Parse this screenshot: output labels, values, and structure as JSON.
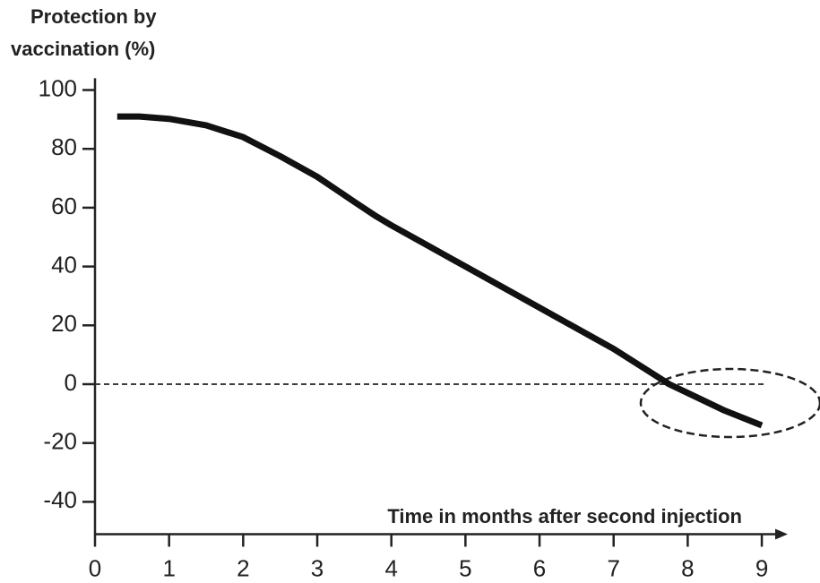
{
  "chart_data": {
    "type": "line",
    "ylabel": [
      "Protection by",
      "vaccination (%)"
    ],
    "xlabel": "Time in months after second injection",
    "x": [
      0.3,
      0.6,
      1,
      1.5,
      2,
      2.5,
      3,
      3.5,
      3.8,
      4,
      4.5,
      5,
      5.5,
      6,
      6.5,
      7,
      7.5,
      7.75,
      8,
      8.5,
      9
    ],
    "series": [
      {
        "name": "Protection",
        "color": "#111111",
        "values": [
          91,
          91,
          90.2,
          88,
          84,
          77.5,
          70.5,
          62,
          57,
          54,
          47,
          40,
          33,
          26,
          19,
          12,
          4,
          0,
          -3,
          -9,
          -14
        ]
      }
    ],
    "xlim": [
      0,
      9.35
    ],
    "xticks": [
      0,
      1,
      2,
      3,
      4,
      5,
      6,
      7,
      8,
      9
    ],
    "ylim": [
      -51,
      104
    ],
    "yticks": [
      -40,
      -20,
      0,
      20,
      40,
      60,
      80,
      100
    ],
    "reference_line": 0
  }
}
